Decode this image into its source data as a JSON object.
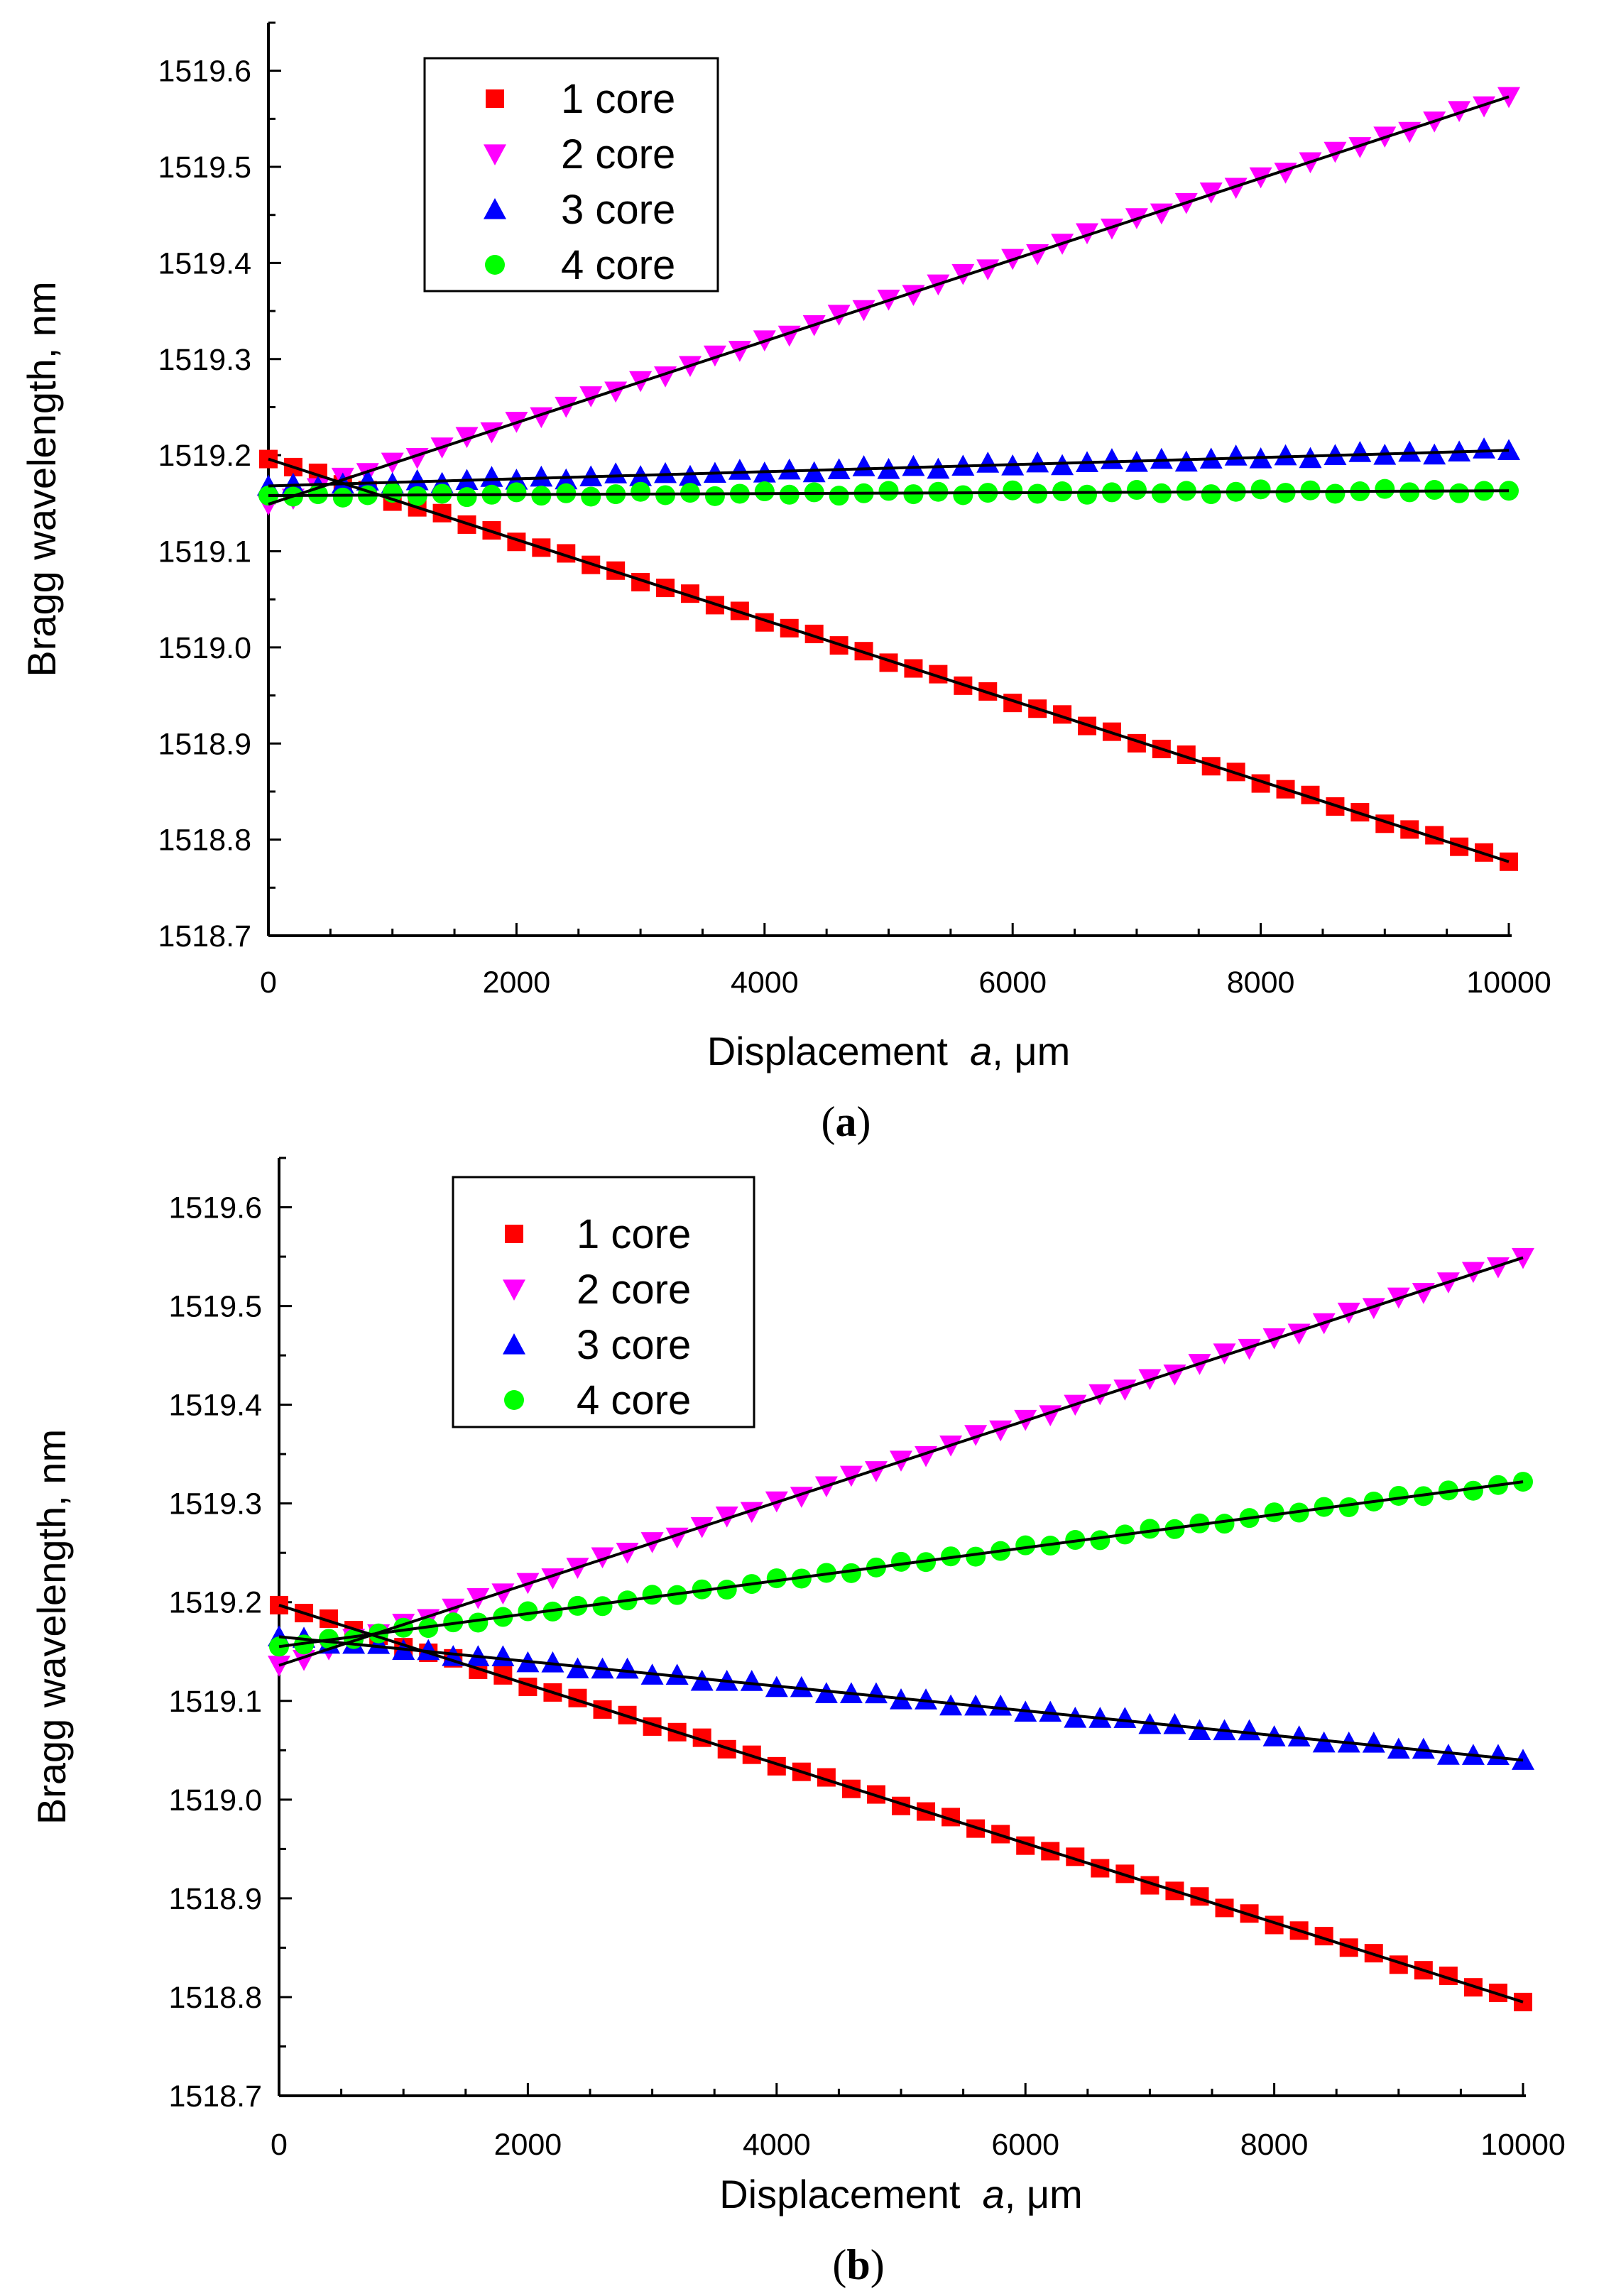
{
  "chart_data": [
    {
      "type": "scatter",
      "caption_letter": "a",
      "xlabel_main": "Displacement",
      "xlabel_var": "a",
      "xlabel_unit": ", μm",
      "ylabel": "Bragg wavelength, nm",
      "xlim": [
        0,
        10000
      ],
      "ylim": [
        1518.7,
        1519.65
      ],
      "x_ticks": [
        0,
        2000,
        4000,
        6000,
        8000,
        10000
      ],
      "x_tick_labels": [
        "0",
        "2000",
        "4000",
        "6000",
        "8000",
        "10000"
      ],
      "y_ticks": [
        1518.7,
        1518.8,
        1518.9,
        1519.0,
        1519.1,
        1519.2,
        1519.3,
        1519.4,
        1519.5,
        1519.6
      ],
      "y_tick_labels": [
        "1518.7",
        "1518.8",
        "1518.9",
        "1519.0",
        "1519.1",
        "1519.2",
        "1519.3",
        "1519.4",
        "1519.5",
        "1519.6"
      ],
      "legend_position": "top-left",
      "x_step": 200,
      "series": [
        {
          "name": "1 core",
          "marker": "square",
          "color": "#ff0000",
          "start": 1519.196,
          "end": 1518.777
        },
        {
          "name": "2 core",
          "marker": "triangle-down",
          "color": "#ff00ff",
          "start": 1519.149,
          "end": 1519.573
        },
        {
          "name": "3 core",
          "marker": "triangle-up",
          "color": "#0000ff",
          "start": 1519.168,
          "end": 1519.205
        },
        {
          "name": "4 core",
          "marker": "circle",
          "color": "#00ff00",
          "start": 1519.158,
          "end": 1519.163
        }
      ],
      "fit_line_color": "#000000"
    },
    {
      "type": "scatter",
      "caption_letter": "b",
      "xlabel_main": "Displacement",
      "xlabel_var": "a",
      "xlabel_unit": ", μm",
      "ylabel": "Bragg wavelength, nm",
      "xlim": [
        0,
        10000
      ],
      "ylim": [
        1518.7,
        1519.65
      ],
      "x_ticks": [
        0,
        2000,
        4000,
        6000,
        8000,
        10000
      ],
      "x_tick_labels": [
        "0",
        "2000",
        "4000",
        "6000",
        "8000",
        "10000"
      ],
      "y_ticks": [
        1518.7,
        1518.8,
        1518.9,
        1519.0,
        1519.1,
        1519.2,
        1519.3,
        1519.4,
        1519.5,
        1519.6
      ],
      "y_tick_labels": [
        "1518.7",
        "1518.8",
        "1518.9",
        "1519.0",
        "1519.1",
        "1519.2",
        "1519.3",
        "1519.4",
        "1519.5",
        "1519.6"
      ],
      "legend_position": "top-left",
      "x_step": 200,
      "series": [
        {
          "name": "1 core",
          "marker": "square",
          "color": "#ff0000",
          "start": 1519.197,
          "end": 1518.795
        },
        {
          "name": "2 core",
          "marker": "triangle-down",
          "color": "#ff00ff",
          "start": 1519.136,
          "end": 1519.549
        },
        {
          "name": "3 core",
          "marker": "triangle-up",
          "color": "#0000ff",
          "start": 1519.165,
          "end": 1519.04
        },
        {
          "name": "4 core",
          "marker": "circle",
          "color": "#00ff00",
          "start": 1519.155,
          "end": 1519.322
        }
      ],
      "fit_line_color": "#000000"
    }
  ]
}
